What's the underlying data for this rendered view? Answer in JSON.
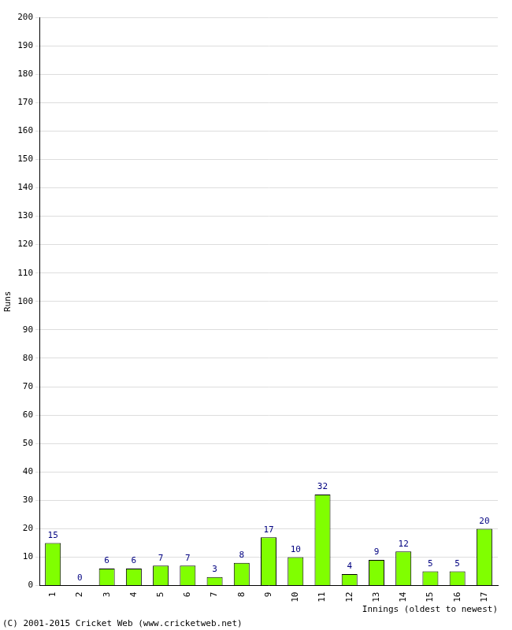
{
  "chart_data": {
    "type": "bar",
    "categories": [
      "1",
      "2",
      "3",
      "4",
      "5",
      "6",
      "7",
      "8",
      "9",
      "10",
      "11",
      "12",
      "13",
      "14",
      "15",
      "16",
      "17"
    ],
    "values": [
      15,
      0,
      6,
      6,
      7,
      7,
      3,
      8,
      17,
      10,
      32,
      4,
      9,
      12,
      5,
      5,
      20
    ],
    "color": "#80ff00",
    "ylim": [
      0,
      200
    ],
    "yticks": [
      0,
      10,
      20,
      30,
      40,
      50,
      60,
      70,
      80,
      90,
      100,
      110,
      120,
      130,
      140,
      150,
      160,
      170,
      180,
      190,
      200
    ],
    "grid": true,
    "data_labels": true,
    "x_label": "Innings (oldest to newest)",
    "y_label": "Runs",
    "annotations": [
      "(C) 2001-2015 Cricket Web (www.cricketweb.net)"
    ]
  }
}
